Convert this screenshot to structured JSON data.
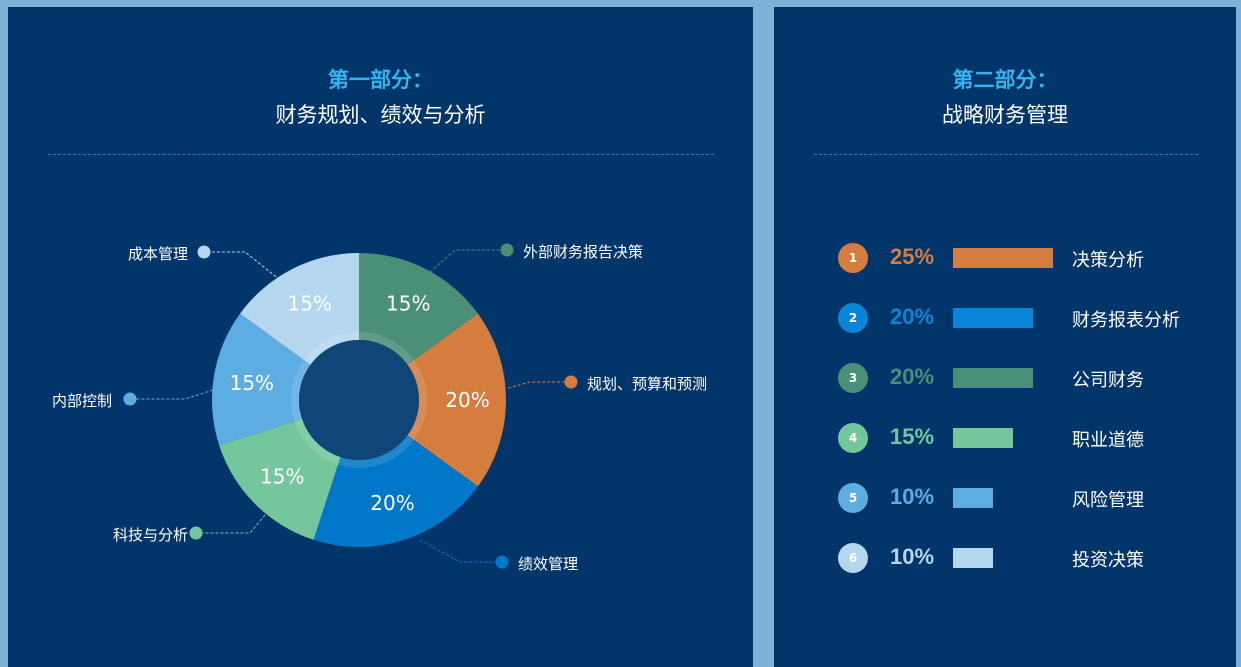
{
  "background_color": "#7fb2d8",
  "panel_color": "#02356a",
  "part1": {
    "title": "第一部分：",
    "subtitle": "财务规划、绩效与分析"
  },
  "part2": {
    "title": "第二部分：",
    "subtitle": "战略财务管理"
  },
  "chart_data": [
    {
      "type": "pie",
      "variant": "donut",
      "start": "top, clockwise",
      "slices": [
        {
          "label": "外部财务报告决策",
          "value": 15,
          "value_label": "15%",
          "color": "#4a8f78"
        },
        {
          "label": "规划、预算和预测",
          "value": 20,
          "value_label": "20%",
          "color": "#d47d3f"
        },
        {
          "label": "绩效管理",
          "value": 20,
          "value_label": "20%",
          "color": "#0077c8"
        },
        {
          "label": "科技与分析",
          "value": 15,
          "value_label": "15%",
          "color": "#74c79d"
        },
        {
          "label": "内部控制",
          "value": 15,
          "value_label": "15%",
          "color": "#5dade2"
        },
        {
          "label": "成本管理",
          "value": 15,
          "value_label": "15%",
          "color": "#b4d7ef"
        }
      ]
    },
    {
      "type": "bar",
      "orientation": "horizontal",
      "items": [
        {
          "rank": "1",
          "value": 25,
          "value_label": "25%",
          "label": "决策分析",
          "color": "#d47d3f"
        },
        {
          "rank": "2",
          "value": 20,
          "value_label": "20%",
          "label": "财务报表分析",
          "color": "#0a84d8"
        },
        {
          "rank": "3",
          "value": 20,
          "value_label": "20%",
          "label": "公司财务",
          "color": "#4a8f78"
        },
        {
          "rank": "4",
          "value": 15,
          "value_label": "15%",
          "label": "职业道德",
          "color": "#74c79d"
        },
        {
          "rank": "5",
          "value": 10,
          "value_label": "10%",
          "label": "风险管理",
          "color": "#5dade2"
        },
        {
          "rank": "6",
          "value": 10,
          "value_label": "10%",
          "label": "投资决策",
          "color": "#b4d7ef"
        }
      ]
    }
  ]
}
